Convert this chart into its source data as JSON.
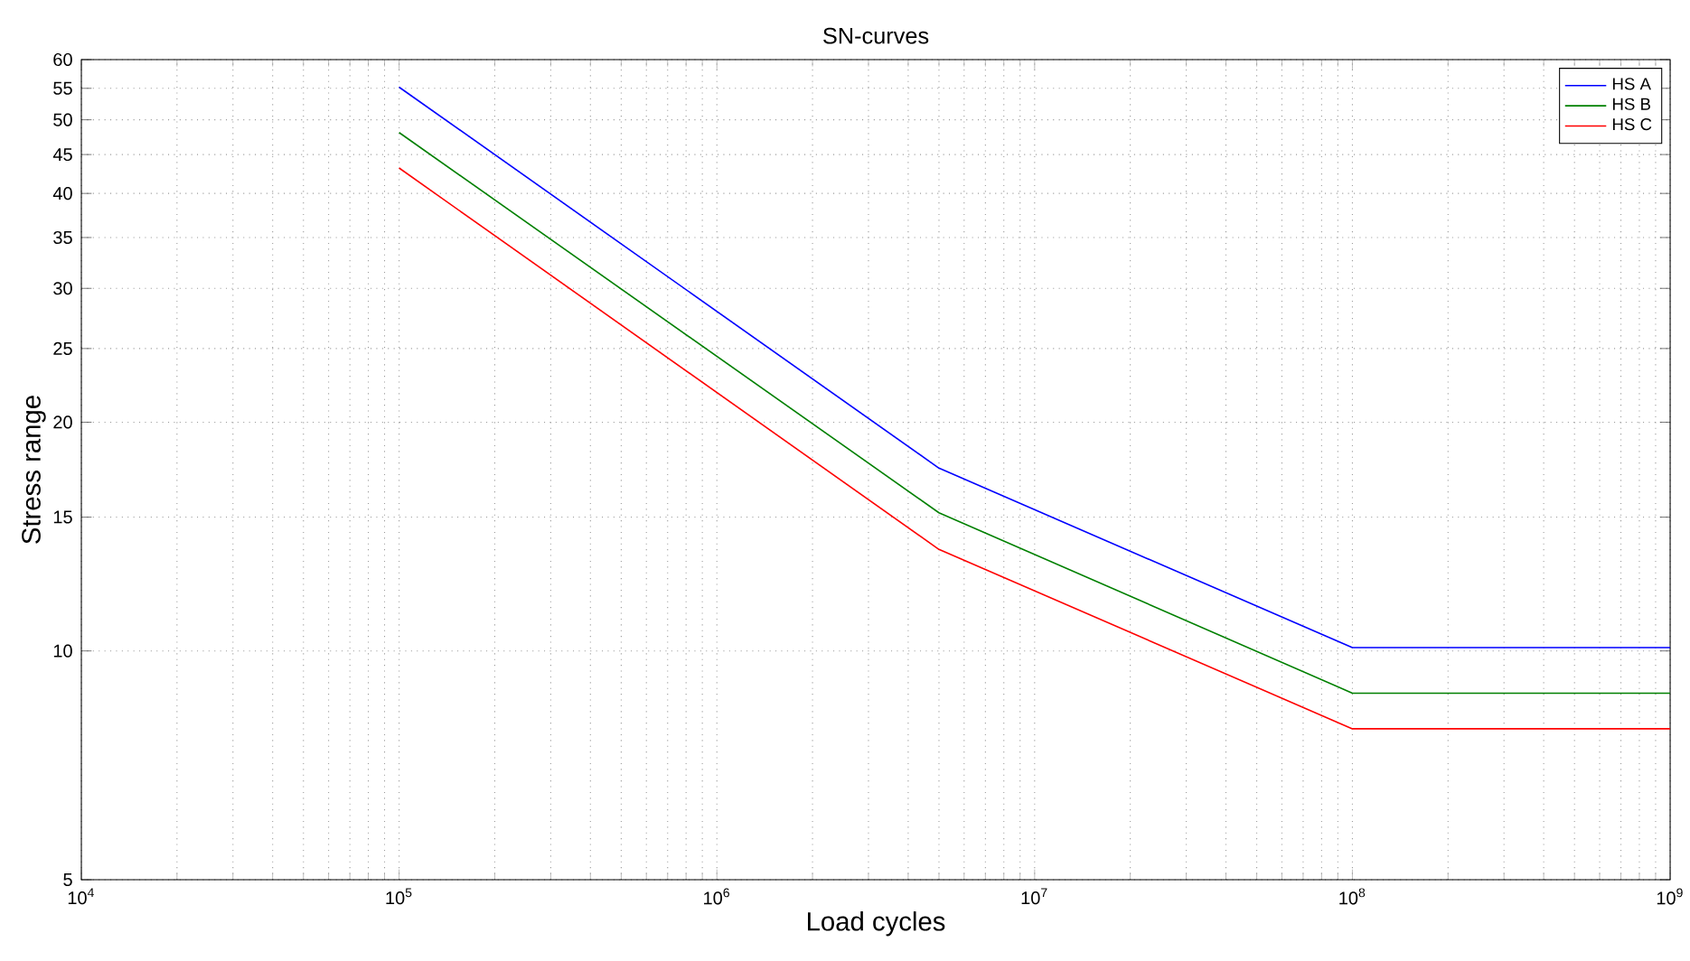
{
  "chart_data": {
    "type": "line",
    "title": "SN-curves",
    "xlabel": "Load cycles",
    "ylabel": "Stress range",
    "log": "xy",
    "grid": true,
    "legend": "top right",
    "xlim": [
      10000,
      1000000000
    ],
    "ylim": [
      5,
      60
    ],
    "xticks": [
      {
        "value": 10000,
        "label": "10$^{4}$"
      },
      {
        "value": 100000,
        "label": "10$^{5}$"
      },
      {
        "value": 1000000,
        "label": "10$^{6}$"
      },
      {
        "value": 10000000,
        "label": "10$^{7}$"
      },
      {
        "value": 100000000,
        "label": "10$^{8}$"
      },
      {
        "value": 1000000000,
        "label": "10$^{9}$"
      }
    ],
    "yticks": [
      5,
      10,
      15,
      20,
      25,
      30,
      35,
      40,
      45,
      50,
      55,
      60
    ],
    "x": [
      100000,
      5000000,
      100000000,
      1000000000
    ],
    "series": [
      {
        "name": "HS A",
        "color": "#0000ff",
        "values": [
          55.2,
          17.4,
          10.1,
          10.1
        ]
      },
      {
        "name": "HS B",
        "color": "#008000",
        "values": [
          48.1,
          15.2,
          8.8,
          8.8
        ]
      },
      {
        "name": "HS C",
        "color": "#ff0000",
        "values": [
          43.2,
          13.6,
          7.9,
          7.9
        ]
      }
    ]
  }
}
